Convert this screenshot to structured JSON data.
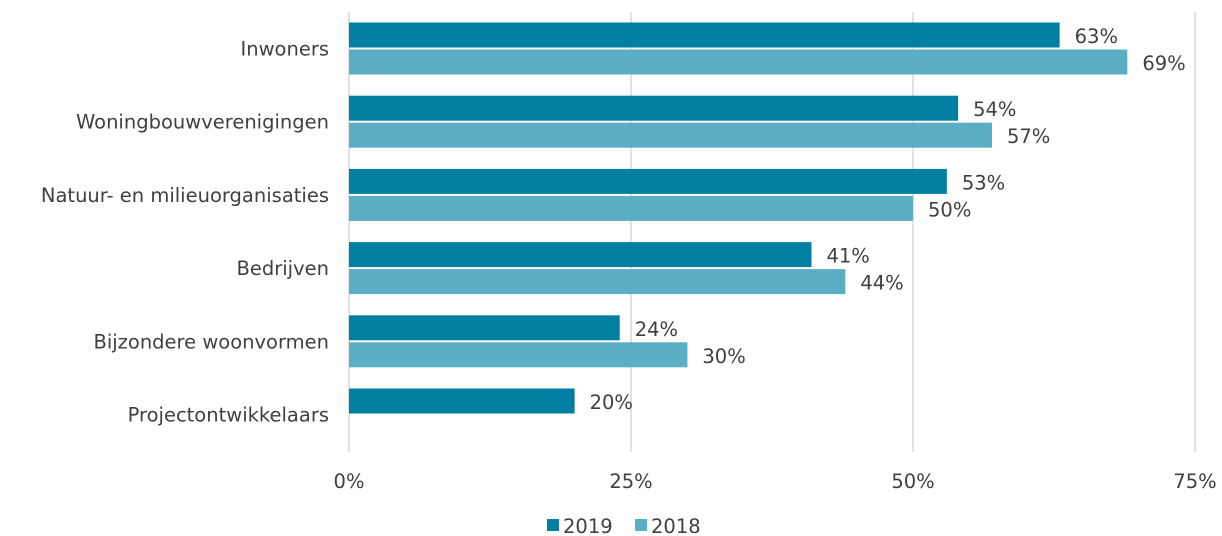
{
  "chart_data": {
    "type": "bar",
    "orientation": "horizontal",
    "categories": [
      "Inwoners",
      "Woningbouwverenigingen",
      "Natuur- en milieuorganisaties",
      "Bedrijven",
      "Bijzondere woonvormen",
      "Projectontwikkelaars"
    ],
    "series": [
      {
        "name": "2019",
        "color": "#007fa0",
        "values": [
          63,
          54,
          53,
          41,
          24,
          20
        ],
        "labels": [
          "63%",
          "54%",
          "53%",
          "41%",
          "24%",
          "20%"
        ]
      },
      {
        "name": "2018",
        "color": "#5baec4",
        "values": [
          69,
          57,
          50,
          44,
          30,
          null
        ],
        "labels": [
          "69%",
          "57%",
          "50%",
          "44%",
          "30%",
          ""
        ]
      }
    ],
    "xlim": [
      0,
      75
    ],
    "xticks": [
      0,
      25,
      50,
      75
    ],
    "xtick_labels": [
      "0%",
      "25%",
      "50%",
      "75%"
    ],
    "grid": "vertical",
    "legend_position": "bottom"
  }
}
